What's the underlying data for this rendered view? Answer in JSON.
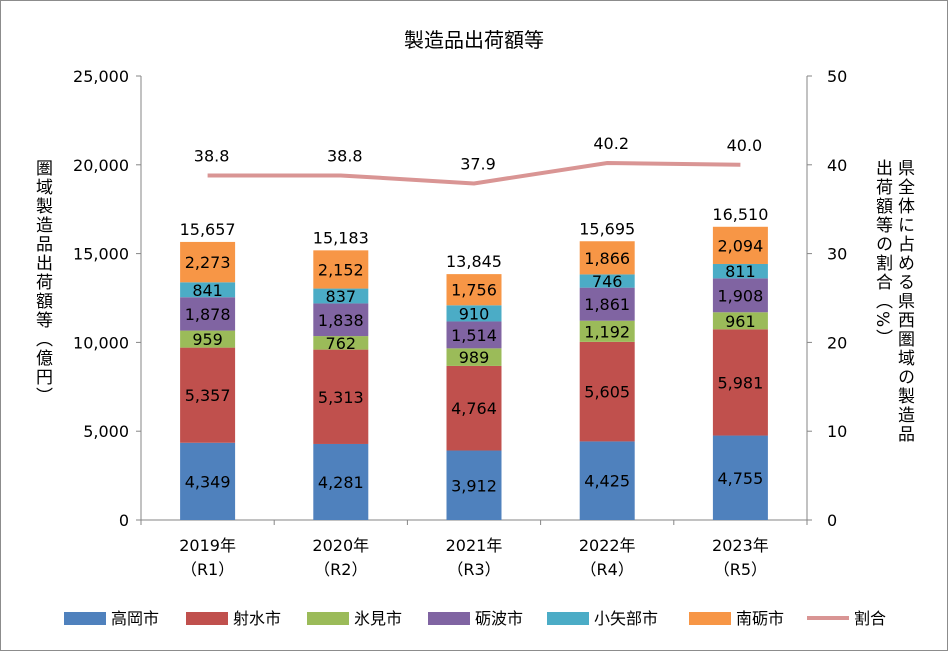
{
  "chart_data": {
    "type": "bar",
    "stacked": true,
    "title": "製造品出荷額等",
    "categories": [
      "2019年（R1）",
      "2020年（R2）",
      "2021年（R3）",
      "2022年（R4）",
      "2023年（R5）"
    ],
    "category_lines": [
      [
        "2019年",
        "（R1）"
      ],
      [
        "2020年",
        "（R2）"
      ],
      [
        "2021年",
        "（R3）"
      ],
      [
        "2022年",
        "（R4）"
      ],
      [
        "2023年",
        "（R5）"
      ]
    ],
    "series": [
      {
        "name": "高岡市",
        "color": "#4F81BD",
        "values": [
          4349,
          4281,
          3912,
          4425,
          4755
        ],
        "labels": [
          "4,349",
          "4,281",
          "3,912",
          "4,425",
          "4,755"
        ]
      },
      {
        "name": "射水市",
        "color": "#C0504D",
        "values": [
          5357,
          5313,
          4764,
          5605,
          5981
        ],
        "labels": [
          "5,357",
          "5,313",
          "4,764",
          "5,605",
          "5,981"
        ]
      },
      {
        "name": "氷見市",
        "color": "#9BBB59",
        "values": [
          959,
          762,
          989,
          1192,
          961
        ],
        "labels": [
          "959",
          "762",
          "989",
          "1,192",
          "961"
        ]
      },
      {
        "name": "砺波市",
        "color": "#8064A2",
        "values": [
          1878,
          1838,
          1514,
          1861,
          1908
        ],
        "labels": [
          "1,878",
          "1,838",
          "1,514",
          "1,861",
          "1,908"
        ]
      },
      {
        "name": "小矢部市",
        "color": "#4BACC6",
        "values": [
          841,
          837,
          910,
          746,
          811
        ],
        "labels": [
          "841",
          "837",
          "910",
          "746",
          "811"
        ]
      },
      {
        "name": "南砺市",
        "color": "#F79646",
        "values": [
          2273,
          2152,
          1756,
          1866,
          2094
        ],
        "labels": [
          "2,273",
          "2,152",
          "1,756",
          "1,866",
          "2,094"
        ]
      }
    ],
    "totals": [
      "15,657",
      "15,183",
      "13,845",
      "15,695",
      "16,510"
    ],
    "line_series": {
      "name": "割合",
      "color": "#D99594",
      "axis": "right",
      "values": [
        38.8,
        38.8,
        37.9,
        40.2,
        40.0
      ],
      "labels": [
        "38.8",
        "38.8",
        "37.9",
        "40.2",
        "40.0"
      ]
    },
    "ylabel": "圏域製造品出荷額等（億円）",
    "ylabel_right": "県全体に占める県西圏域の製造品出荷額等の割合（%）",
    "ylim": [
      0,
      25000
    ],
    "yticks": [
      "0",
      "5,000",
      "10,000",
      "15,000",
      "20,000",
      "25,000"
    ],
    "ylim_right": [
      0,
      50
    ],
    "yticks_right": [
      "0",
      "10",
      "20",
      "30",
      "40",
      "50"
    ],
    "grid": false,
    "legend": "bottom"
  }
}
